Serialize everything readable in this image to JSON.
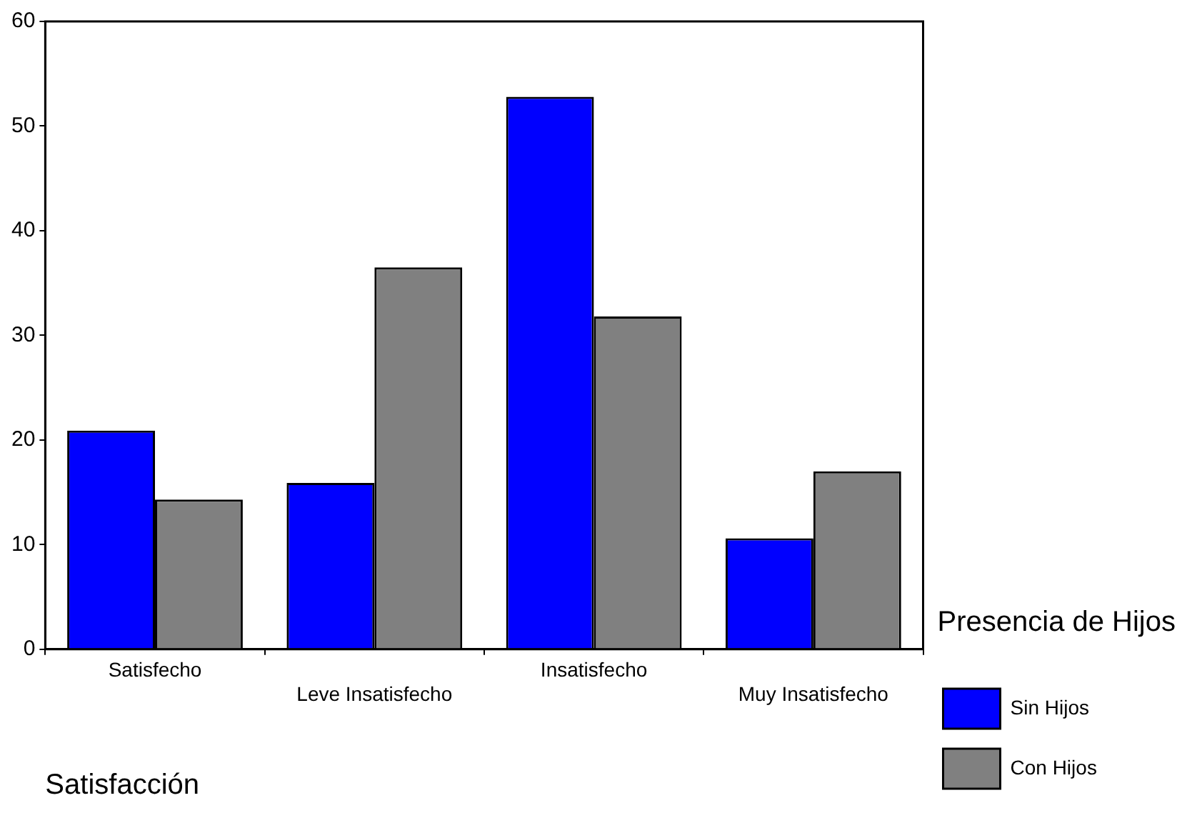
{
  "chart_data": {
    "type": "bar",
    "xlabel": "Satisfacción",
    "legend_title": "Presencia de Hijos",
    "categories": [
      "Satisfecho",
      "Leve Insatisfecho",
      "Insatisfecho",
      "Muy Insatisfecho"
    ],
    "series": [
      {
        "name": "Sin Hijos",
        "color": "#0000ff",
        "values": [
          20.9,
          15.9,
          52.8,
          10.6
        ]
      },
      {
        "name": "Con Hijos",
        "color": "#808080",
        "values": [
          14.3,
          36.5,
          31.8,
          17.0
        ]
      }
    ],
    "ylim": [
      0,
      60
    ],
    "yticks": [
      0,
      10,
      20,
      30,
      40,
      50,
      60
    ],
    "grid": false,
    "legend": "right"
  }
}
